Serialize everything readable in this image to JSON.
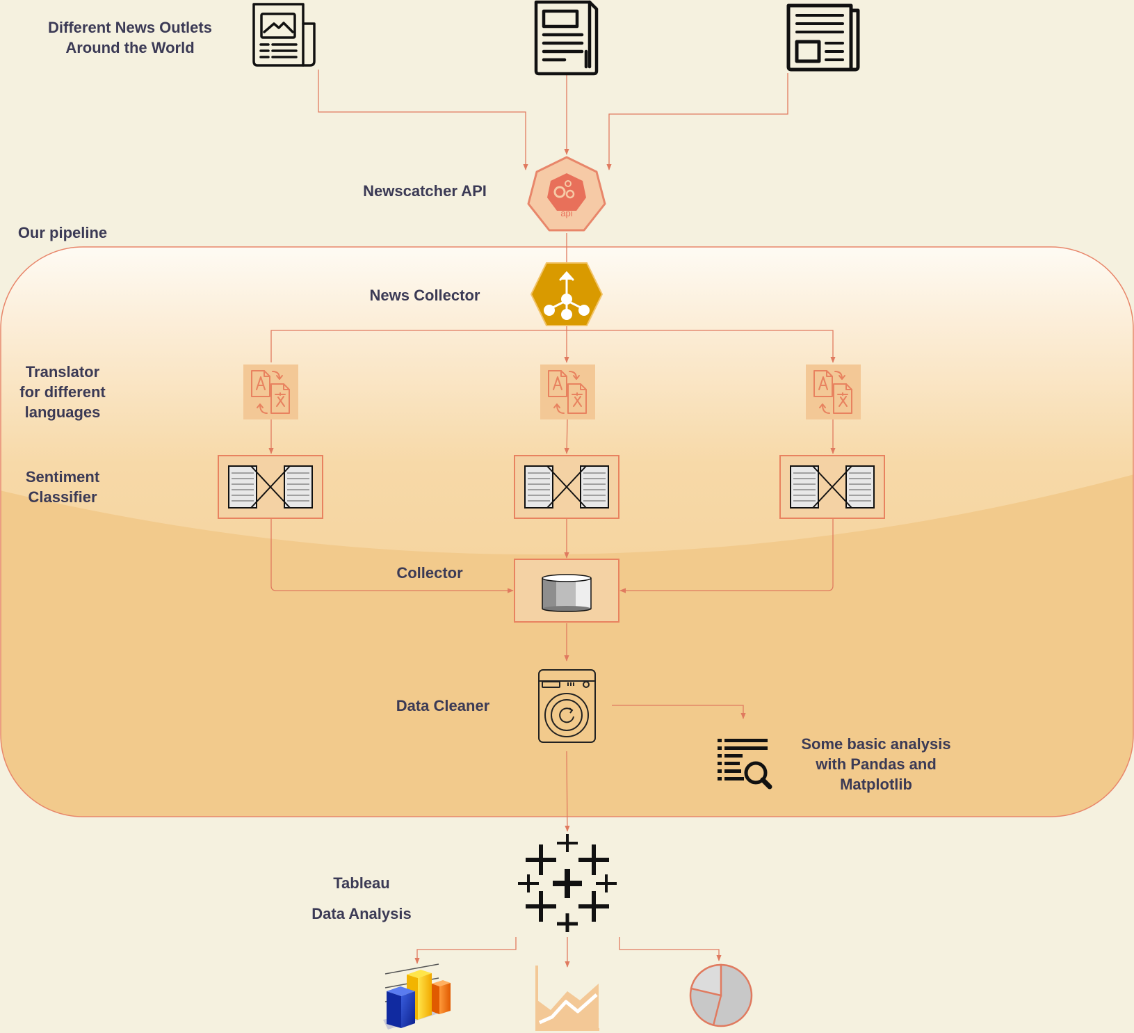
{
  "colors": {
    "background": "#f5f1df",
    "connector": "#e07a5f",
    "pipeline_light": "#fdf3e3",
    "pipeline_mid": "#f7d9a8",
    "pipeline_dark": "#f2ca8c",
    "accent_orange": "#e8825f",
    "accent_gold": "#d99a00",
    "tile_fill": "#f3c896",
    "text": "#3b3a55"
  },
  "labels": {
    "news_outlets_line1": "Different News Outlets",
    "news_outlets_line2": "Around the World",
    "newscatcher": "Newscatcher API",
    "api_icon_text": "api",
    "pipeline": "Our pipeline",
    "news_collector": "News Collector",
    "translator_line1": "Translator",
    "translator_line2": "for different",
    "translator_line3": "languages",
    "sentiment_line1": "Sentiment",
    "sentiment_line2": "Classifier",
    "collector": "Collector",
    "data_cleaner": "Data Cleaner",
    "analysis_line1": "Some basic analysis",
    "analysis_line2": "with Pandas and",
    "analysis_line3": "Matplotlib",
    "tableau": "Tableau",
    "data_analysis": "Data Analysis"
  }
}
